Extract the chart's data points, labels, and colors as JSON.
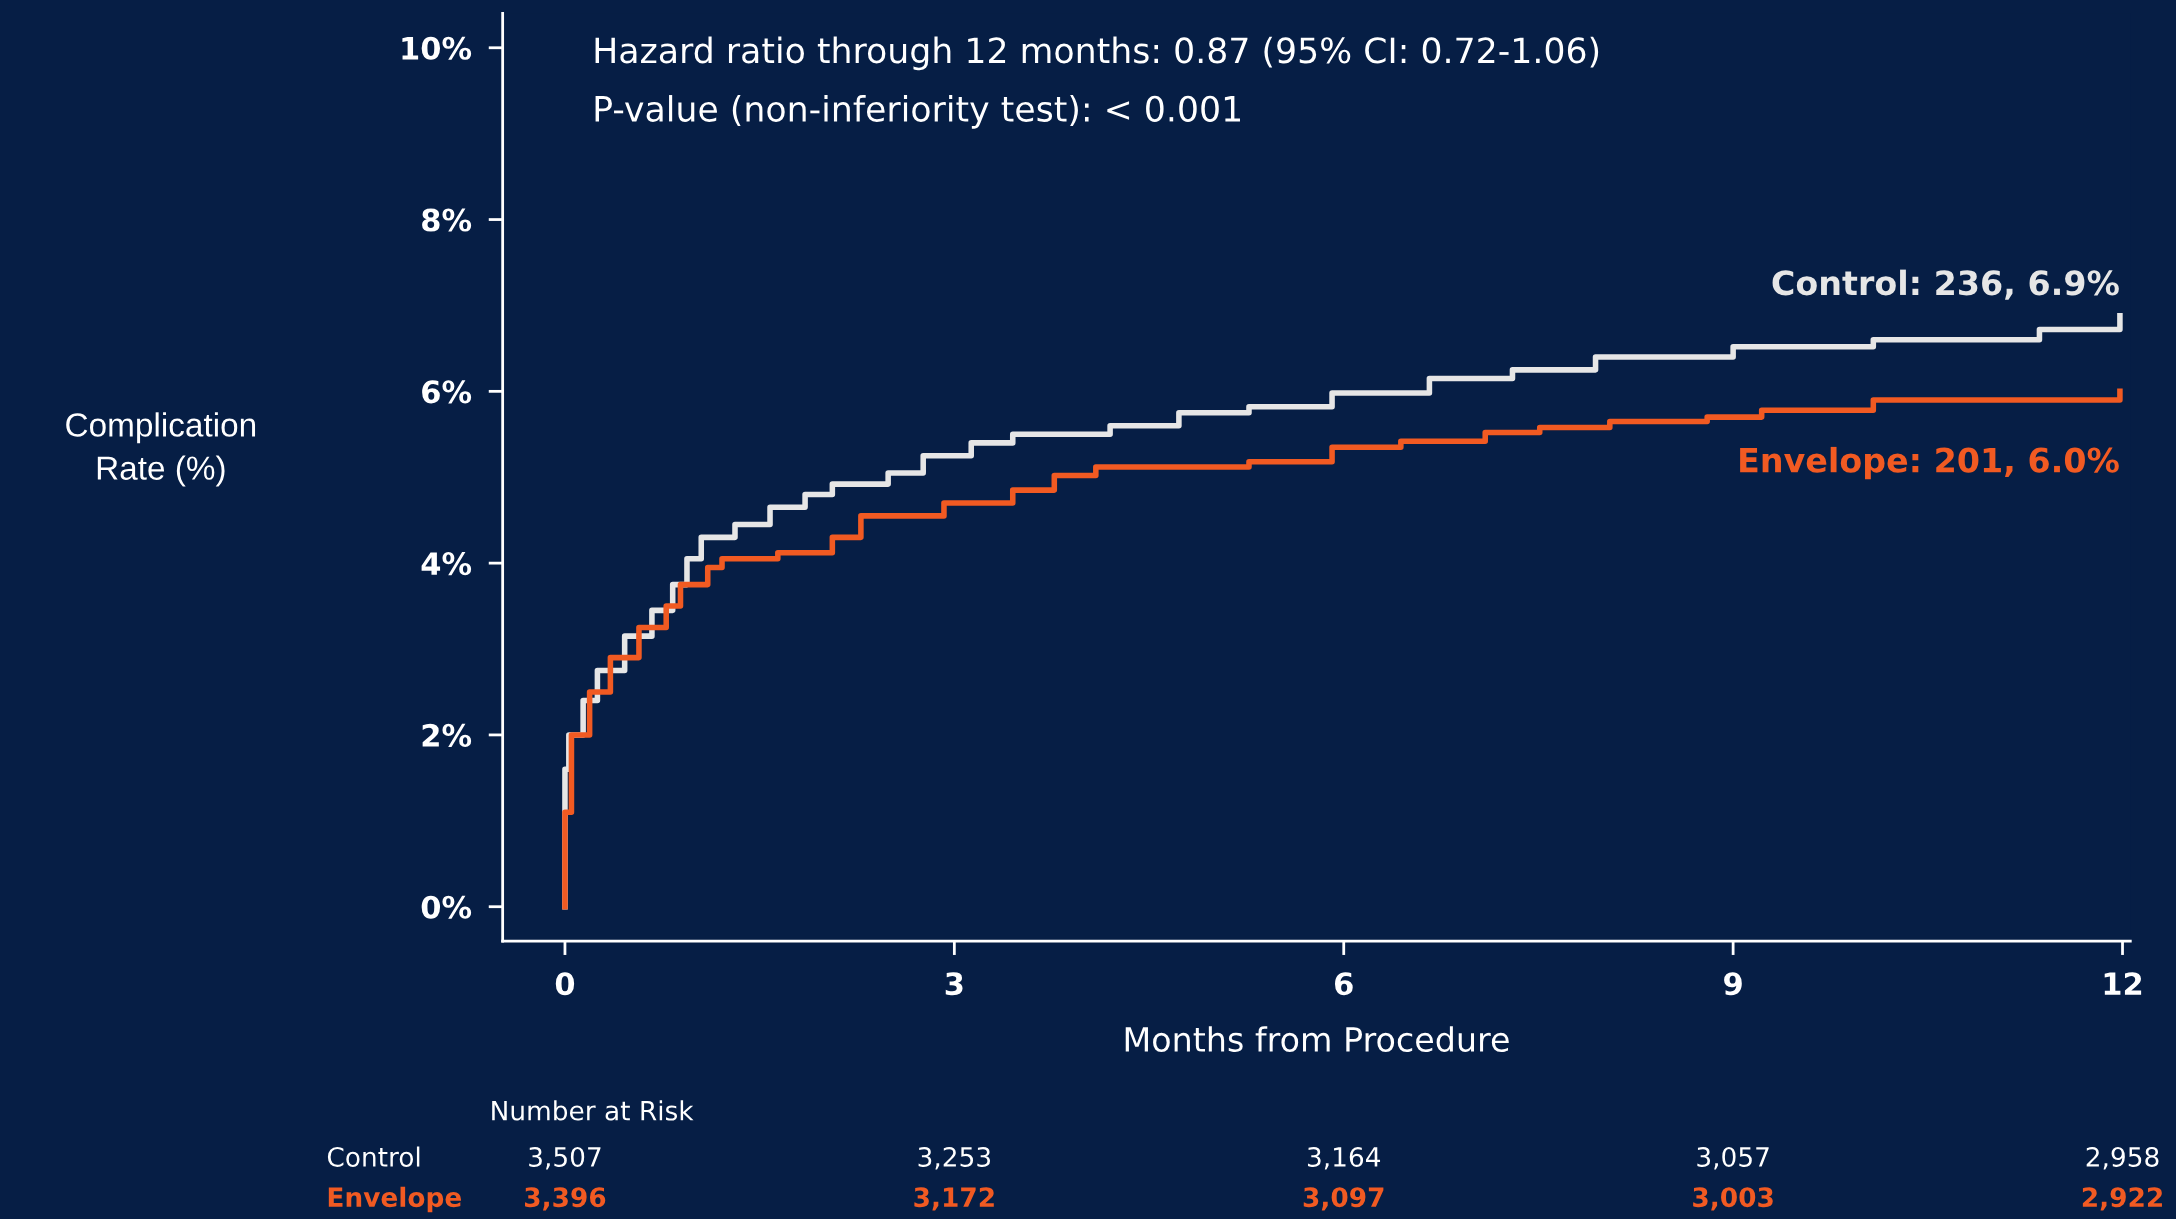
{
  "chart_data": {
    "type": "step",
    "xlabel": "Months from Procedure",
    "ylabel": "Complication\nRate (%)",
    "xlim": [
      -0.48,
      12.06
    ],
    "ylim": [
      -0.4,
      10.4
    ],
    "xticks": [
      0,
      3,
      6,
      9,
      12
    ],
    "yticks": [
      {
        "value": 0,
        "label": "0%"
      },
      {
        "value": 2,
        "label": "2%"
      },
      {
        "value": 4,
        "label": "4%"
      },
      {
        "value": 6,
        "label": "6%"
      },
      {
        "value": 8,
        "label": "8%"
      },
      {
        "value": 10,
        "label": "10%"
      }
    ],
    "grid": false,
    "legend": false,
    "line_style": "solid",
    "marker": "none",
    "series": [
      {
        "name": "Control: 236, 6.9%",
        "color": "#e6e6e6",
        "x": [
          0,
          0,
          0.03,
          0.14,
          0.25,
          0.46,
          0.67,
          0.83,
          0.94,
          1.05,
          1.31,
          1.58,
          1.85,
          2.06,
          2.49,
          2.76,
          3.13,
          3.45,
          4.2,
          4.73,
          5.27,
          5.91,
          6.66,
          7.3,
          7.94,
          9.0,
          10.08,
          11.36,
          11.98
        ],
        "values": [
          0,
          1.6,
          2.0,
          2.4,
          2.75,
          3.15,
          3.45,
          3.75,
          4.05,
          4.3,
          4.45,
          4.65,
          4.8,
          4.92,
          5.05,
          5.25,
          5.4,
          5.5,
          5.6,
          5.75,
          5.82,
          5.98,
          6.15,
          6.25,
          6.4,
          6.52,
          6.6,
          6.72,
          6.88
        ]
      },
      {
        "name": "Envelope: 201, 6.0%",
        "color": "#f15a22",
        "x": [
          0,
          0,
          0.05,
          0.19,
          0.35,
          0.57,
          0.78,
          0.89,
          1.1,
          1.21,
          1.64,
          2.06,
          2.28,
          2.92,
          3.45,
          3.77,
          4.09,
          5.27,
          5.91,
          6.44,
          7.09,
          7.51,
          8.05,
          8.8,
          9.22,
          10.08,
          11.98
        ],
        "values": [
          0,
          1.1,
          2.0,
          2.5,
          2.9,
          3.25,
          3.5,
          3.75,
          3.95,
          4.05,
          4.12,
          4.3,
          4.55,
          4.7,
          4.85,
          5.02,
          5.12,
          5.18,
          5.35,
          5.42,
          5.52,
          5.58,
          5.65,
          5.7,
          5.78,
          5.9,
          6.0
        ]
      }
    ],
    "annotations": [
      "Hazard ratio through 12 months: 0.87 (95% CI: 0.72-1.06)",
      "P-value (non-inferiority test): < 0.001",
      "Number at Risk",
      "Control",
      "3,507",
      "3,253",
      "3,164",
      "3,057",
      "2,958",
      "Envelope",
      "3,396",
      "3,172",
      "3,097",
      "3,003",
      "2,922"
    ]
  }
}
